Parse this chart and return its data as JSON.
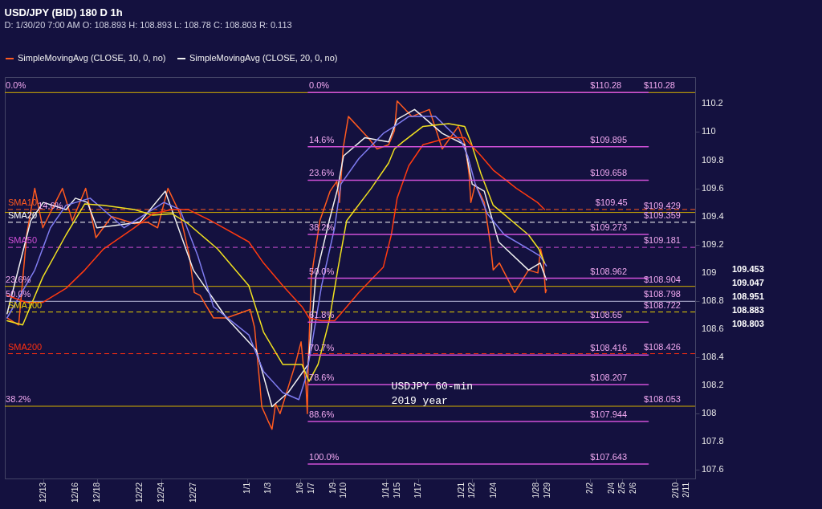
{
  "chart_data": {
    "type": "line",
    "title": "USD/JPY (BID) 180 D 1h",
    "subtitle": "D: 1/30/20 7:00 AM   O: 108.893   H: 108.893   L: 108.78   C: 108.803   R: 0.113",
    "legend": "top",
    "xlim": [
      "2019-12-09T10:00",
      "2020-02-11T19:00"
    ],
    "ylim": [
      107.54,
      110.39
    ],
    "xticks": [
      {
        "value": "2019-12-13",
        "label": "12/13"
      },
      {
        "value": "2019-12-16",
        "label": "12/16"
      },
      {
        "value": "2019-12-18",
        "label": "12/18"
      },
      {
        "value": "2019-12-22",
        "label": "12/22"
      },
      {
        "value": "2019-12-24",
        "label": "12/24"
      },
      {
        "value": "2019-12-27",
        "label": "12/27"
      },
      {
        "value": "2020-01-01",
        "label": "1/1"
      },
      {
        "value": "2020-01-03",
        "label": "1/3"
      },
      {
        "value": "2020-01-06",
        "label": "1/6"
      },
      {
        "value": "2020-01-07",
        "label": "1/7"
      },
      {
        "value": "2020-01-09",
        "label": "1/9"
      },
      {
        "value": "2020-01-10",
        "label": "1/10"
      },
      {
        "value": "2020-01-14",
        "label": "1/14"
      },
      {
        "value": "2020-01-15",
        "label": "1/15"
      },
      {
        "value": "2020-01-17",
        "label": "1/17"
      },
      {
        "value": "2020-01-21",
        "label": "1/21"
      },
      {
        "value": "2020-01-22",
        "label": "1/22"
      },
      {
        "value": "2020-01-24",
        "label": "1/24"
      },
      {
        "value": "2020-01-28",
        "label": "1/28"
      },
      {
        "value": "2020-01-29",
        "label": "1/29"
      },
      {
        "value": "2020-02-02",
        "label": "2/2"
      },
      {
        "value": "2020-02-04",
        "label": "2/4"
      },
      {
        "value": "2020-02-05",
        "label": "2/5"
      },
      {
        "value": "2020-02-06",
        "label": "2/6"
      },
      {
        "value": "2020-02-10",
        "label": "2/10"
      },
      {
        "value": "2020-02-11",
        "label": "2/11"
      }
    ],
    "yticks": [
      107.6,
      107.8,
      108,
      108.2,
      108.4,
      108.6,
      108.8,
      109,
      109.2,
      109.4,
      109.6,
      109.8,
      110,
      110.2
    ],
    "series": [
      {
        "name": "SimpleMovingAvg (CLOSE, 10, 0, no)",
        "color": "#ff5a1f",
        "x": [
          "2019-12-09T15:00",
          "2019-12-10T17:00",
          "2019-12-11T11:00",
          "2019-12-12T05:00",
          "2019-12-12T23:00",
          "2019-12-14T19:00",
          "2019-12-15T17:00",
          "2019-12-16T23:00",
          "2019-12-17T22:00",
          "2019-12-19T09:00",
          "2019-12-21T12:00",
          "2019-12-22T17:00",
          "2019-12-23T16:00",
          "2019-12-24T15:00",
          "2019-12-25T18:00",
          "2019-12-26T15:00",
          "2019-12-27T02:00",
          "2019-12-27T15:00",
          "2019-12-28T21:00",
          "2019-12-30T02:00",
          "2020-01-01T07:00",
          "2020-01-01T17:00",
          "2020-01-02T05:00",
          "2020-01-02T09:00",
          "2020-01-02T23:00",
          "2020-01-03T08:00",
          "2020-01-03T16:00",
          "2020-01-04T02:00",
          "2020-01-05T12:00",
          "2020-01-06T01:00",
          "2020-01-06T06:00",
          "2020-01-06T12:00",
          "2020-01-06T15:00",
          "2020-01-06T17:00",
          "2020-01-07T00:00",
          "2020-01-07T19:00",
          "2020-01-08T18:00",
          "2020-01-09T09:00",
          "2020-01-09T15:00",
          "2020-01-09T23:00",
          "2020-01-10T11:00",
          "2020-01-12T07:00",
          "2020-01-13T03:00",
          "2020-01-14T05:00",
          "2020-01-14T18:00",
          "2020-01-15T00:00",
          "2020-01-16T09:00",
          "2020-01-18T00:00",
          "2020-01-19T05:00",
          "2020-01-20T17:00",
          "2020-01-21T08:00",
          "2020-01-21T17:00",
          "2020-01-21T21:00",
          "2020-01-22T07:00",
          "2020-01-23T03:00",
          "2020-01-23T17:00",
          "2020-01-23T23:00",
          "2020-01-24T13:00",
          "2020-01-25T23:00",
          "2020-01-27T06:00",
          "2020-01-28T03:00",
          "2020-01-28T09:00",
          "2020-01-28T15:00",
          "2020-01-28T20:00",
          "2020-01-28T22:00"
        ],
        "values": [
          108.68,
          108.63,
          109.27,
          109.6,
          109.32,
          109.6,
          109.37,
          109.6,
          109.25,
          109.4,
          109.35,
          109.36,
          109.32,
          109.6,
          109.42,
          109.12,
          108.86,
          108.84,
          108.68,
          108.68,
          108.74,
          108.61,
          108.2,
          108.05,
          107.95,
          107.89,
          108.07,
          108,
          108.35,
          108.51,
          108.35,
          108.2,
          108,
          108.35,
          108.97,
          109.37,
          109.58,
          109.65,
          109.5,
          109.88,
          110.11,
          109.96,
          109.88,
          109.91,
          110.01,
          110.22,
          110.11,
          110.16,
          109.88,
          110.04,
          109.91,
          109.7,
          109.5,
          109.63,
          109.5,
          109.2,
          109.02,
          109.07,
          108.86,
          109.02,
          109,
          109.17,
          109.09,
          108.86,
          108.88
        ]
      },
      {
        "name": "SimpleMovingAvg (CLOSE, 20, 0, no)",
        "color": "#f0f0f0",
        "x": [
          "2019-12-09T15:00",
          "2019-12-11T20:00",
          "2019-12-13",
          "2019-12-15T03:00",
          "2019-12-16",
          "2019-12-17T03:00",
          "2019-12-18",
          "2019-12-22",
          "2019-12-24T09:00",
          "2019-12-27",
          "2019-12-30T02:00",
          "2020-01-01T21:00",
          "2020-01-03T08:00",
          "2020-01-04T20:00",
          "2020-01-06T17:00",
          "2020-01-07T10:00",
          "2020-01-08T16:00",
          "2020-01-09T11:00",
          "2020-01-10",
          "2020-01-12",
          "2020-01-14T05:00",
          "2020-01-15",
          "2020-01-16T15:00",
          "2020-01-19T05:00",
          "2020-01-21T07:00",
          "2020-01-22",
          "2020-01-23T03:00",
          "2020-01-24T11:00",
          "2020-01-27T06:00",
          "2020-01-28T08:00",
          "2020-01-28T22:00"
        ],
        "values": [
          108.71,
          109.37,
          109.5,
          109.45,
          109.53,
          109.5,
          109.32,
          109.36,
          109.58,
          109.02,
          108.68,
          108.45,
          108.05,
          108.15,
          108.35,
          108.97,
          109.37,
          109.6,
          109.83,
          109.96,
          109.93,
          110.09,
          110.16,
          109.99,
          109.91,
          109.63,
          109.58,
          109.22,
          109.02,
          109.07,
          108.95
        ]
      },
      {
        "color": "#7f7cf0",
        "x": [
          "2019-12-09T15:00",
          "2019-12-12T05:00",
          "2019-12-13T16:00",
          "2019-12-15T03:00",
          "2019-12-17T09:00",
          "2019-12-20T13:00",
          "2019-12-23T05:00",
          "2019-12-24T06:00",
          "2019-12-25T18:00",
          "2019-12-27T10:00",
          "2019-12-28T21:00",
          "2020-01-01T04:00",
          "2020-01-02T13:00",
          "2020-01-04T08:00",
          "2020-01-05T20:00",
          "2020-01-06T11:00",
          "2020-01-06T23:00",
          "2020-01-07T23:00",
          "2020-01-09T04:00",
          "2020-01-09T18:00",
          "2020-01-11T10:00",
          "2020-01-13T17:00",
          "2020-01-14T18:00",
          "2020-01-16T02:00",
          "2020-01-18T14:00",
          "2020-01-21",
          "2020-01-21T14:00",
          "2020-01-22T07:00",
          "2020-01-23T10:00",
          "2020-01-25",
          "2020-01-27T06:00",
          "2020-01-28T08:00",
          "2020-01-28T22:00"
        ],
        "values": [
          108.68,
          109.02,
          109.32,
          109.48,
          109.53,
          109.32,
          109.45,
          109.5,
          109.45,
          109.12,
          108.76,
          108.56,
          108.3,
          108.15,
          108.1,
          108.25,
          108.45,
          108.91,
          109.32,
          109.63,
          109.81,
          109.99,
          110.04,
          110.11,
          110.11,
          109.93,
          109.83,
          109.63,
          109.42,
          109.27,
          109.17,
          109.12,
          109.05
        ]
      },
      {
        "color": "#f0e020",
        "x": [
          "2019-12-09T15:00",
          "2019-12-11T02:00",
          "2019-12-12T23:00",
          "2019-12-15T03:00",
          "2019-12-16T21:00",
          "2019-12-18T15:00",
          "2019-12-21T12:00",
          "2019-12-23T05:00",
          "2019-12-25",
          "2019-12-26T12:00",
          "2019-12-29T06:00",
          "2020-01-01T04:00",
          "2020-01-02T13:00",
          "2020-01-04T08:00",
          "2020-01-06T03:00",
          "2020-01-06T19:00",
          "2020-01-07T15:00",
          "2020-01-08T16:00",
          "2020-01-09T11:00",
          "2020-01-10T07:00",
          "2020-01-12T14:00",
          "2020-01-14T05:00",
          "2020-01-14T18:00",
          "2020-01-15T13:00",
          "2020-01-17T10:00",
          "2020-01-19T19:00",
          "2020-01-21T07:00",
          "2020-01-21T21:00",
          "2020-01-22T20:00",
          "2020-01-23T23:00",
          "2020-01-27T06:00",
          "2020-01-28T05:00",
          "2020-01-28T18:00"
        ],
        "values": [
          108.66,
          108.63,
          108.97,
          109.27,
          109.49,
          109.48,
          109.45,
          109.41,
          109.42,
          109.35,
          109.17,
          108.91,
          108.58,
          108.35,
          108.35,
          108.23,
          108.35,
          108.66,
          109.02,
          109.37,
          109.6,
          109.78,
          109.88,
          109.93,
          110.04,
          110.06,
          110.04,
          109.93,
          109.7,
          109.48,
          109.27,
          109.17,
          109.07
        ]
      },
      {
        "color": "#ff3a10",
        "x": [
          "2019-12-09T15:00",
          "2019-12-11T11:00",
          "2019-12-12T23:00",
          "2019-12-15T03:00",
          "2019-12-16T21:00",
          "2019-12-18T15:00",
          "2019-12-21T12:00",
          "2019-12-23T05:00",
          "2019-12-25",
          "2019-12-26T12:00",
          "2019-12-28T15:00",
          "2020-01-01T04:00",
          "2020-01-02T13:00",
          "2020-01-04T08:00",
          "2020-01-06T03:00",
          "2020-01-06T19:00",
          "2020-01-07T23:00",
          "2020-01-09T04:00",
          "2020-01-09T18:00",
          "2020-01-11T10:00",
          "2020-01-13T17:00",
          "2020-01-14T11:00",
          "2020-01-15",
          "2020-01-16T02:00",
          "2020-01-17T10:00",
          "2020-01-19T19:00",
          "2020-01-21T07:00",
          "2020-01-21T21:00",
          "2020-01-22T20:00",
          "2020-01-23T23:00",
          "2020-01-26T03:00",
          "2020-01-28T02:00",
          "2020-01-28T18:00"
        ],
        "values": [
          108.84,
          108.79,
          108.79,
          108.89,
          109.02,
          109.17,
          109.32,
          109.42,
          109.45,
          109.45,
          109.37,
          109.22,
          109.07,
          108.91,
          108.76,
          108.68,
          108.66,
          108.66,
          108.71,
          108.86,
          109.04,
          109.27,
          109.53,
          109.76,
          109.91,
          109.96,
          109.96,
          109.91,
          109.83,
          109.73,
          109.6,
          109.5,
          109.45
        ]
      },
      {
        "color": "#d050d8",
        "x": [
          "2020-01-06T17:00",
          "2020-02-07T10:00"
        ],
        "values": [
          110.28,
          110.28
        ]
      },
      {
        "color": "#d050d8",
        "x": [
          "2020-01-06T17:00",
          "2020-02-07T10:00"
        ],
        "values": [
          109.895,
          109.895
        ]
      },
      {
        "color": "#d050d8",
        "x": [
          "2020-01-06T17:00",
          "2020-02-07T10:00"
        ],
        "values": [
          109.658,
          109.658
        ]
      },
      {
        "color": "#d050d8",
        "x": [
          "2020-01-06T17:00",
          "2020-02-07T10:00"
        ],
        "values": [
          109.273,
          109.273
        ]
      },
      {
        "color": "#d050d8",
        "x": [
          "2020-01-06T17:00",
          "2020-02-07T10:00"
        ],
        "values": [
          108.962,
          108.962
        ]
      },
      {
        "color": "#d050d8",
        "x": [
          "2020-01-06T17:00",
          "2020-02-07T10:00"
        ],
        "values": [
          108.65,
          108.65
        ]
      },
      {
        "color": "#d050d8",
        "x": [
          "2020-01-06T17:00",
          "2020-02-07T10:00"
        ],
        "values": [
          108.416,
          108.416
        ]
      },
      {
        "color": "#d050d8",
        "x": [
          "2020-01-06T17:00",
          "2020-02-07T10:00"
        ],
        "values": [
          108.207,
          108.207
        ]
      },
      {
        "color": "#d050d8",
        "x": [
          "2020-01-06T17:00",
          "2020-02-07T10:00"
        ],
        "values": [
          107.944,
          107.944
        ]
      },
      {
        "color": "#d050d8",
        "x": [
          "2020-01-06T17:00",
          "2020-02-07T10:00"
        ],
        "values": [
          107.643,
          107.643
        ]
      }
    ],
    "ref_lines": [
      {
        "axis": "y",
        "value": 110.28,
        "color": "#d4b000"
      },
      {
        "axis": "y",
        "value": 109.429,
        "color": "#d4b000"
      },
      {
        "axis": "y",
        "value": 108.904,
        "color": "#d4b000"
      },
      {
        "axis": "y",
        "value": 108.798,
        "color": "#b8b8d8"
      },
      {
        "axis": "y",
        "value": 108.053,
        "color": "#d4b000"
      },
      {
        "axis": "y",
        "value": 109.45,
        "label": "SMA10",
        "color": "#ff5a1f",
        "line_style": "dashed"
      },
      {
        "axis": "y",
        "value": 109.359,
        "label": "SMA20",
        "color": "#ffffff",
        "line_style": "dashed"
      },
      {
        "axis": "y",
        "value": 109.181,
        "label": "SMA50",
        "color": "#d050d8",
        "line_style": "dashed"
      },
      {
        "axis": "y",
        "value": 108.722,
        "label": "SMA100",
        "color": "#e8d000",
        "line_style": "dashed"
      },
      {
        "axis": "y",
        "value": 108.426,
        "label": "SMA200",
        "color": "#ff3010",
        "line_style": "dashed"
      }
    ],
    "annotations": [
      {
        "text": "0.0%",
        "x": "2019-12-09T12:00",
        "y": 110.28
      },
      {
        "text": "14.6%",
        "x": "2019-12-12T12:00",
        "y": 109.429
      },
      {
        "text": "23.6%",
        "x": "2019-12-09T12:00",
        "y": 108.904
      },
      {
        "text": "50.0%",
        "x": "2019-12-09T12:00",
        "y": 108.798
      },
      {
        "text": "38.2%",
        "x": "2019-12-09T12:00",
        "y": 108.053
      },
      {
        "text": "$110.28",
        "x": "2020-02-07T00:00",
        "y": 110.28
      },
      {
        "text": "$109.429",
        "x": "2020-02-07T00:00",
        "y": 109.429
      },
      {
        "text": "$109.45",
        "x": "2020-02-02T12:00",
        "y": 109.45
      },
      {
        "text": "$109.359",
        "x": "2020-02-07T00:00",
        "y": 109.359
      },
      {
        "text": "$109.181",
        "x": "2020-02-07T00:00",
        "y": 109.181
      },
      {
        "text": "$108.904",
        "x": "2020-02-07T00:00",
        "y": 108.904
      },
      {
        "text": "$108.798",
        "x": "2020-02-07T00:00",
        "y": 108.798
      },
      {
        "text": "$108.722",
        "x": "2020-02-07T00:00",
        "y": 108.722
      },
      {
        "text": "$108.426",
        "x": "2020-02-07T00:00",
        "y": 108.426
      },
      {
        "text": "$108.053",
        "x": "2020-02-07T00:00",
        "y": 108.053
      },
      {
        "text": "0.0%",
        "x": "2020-01-06T19:00",
        "y": 110.28
      },
      {
        "text": "14.6%",
        "x": "2020-01-06T19:00",
        "y": 109.895
      },
      {
        "text": "23.6%",
        "x": "2020-01-06T19:00",
        "y": 109.658
      },
      {
        "text": "38.2%",
        "x": "2020-01-06T19:00",
        "y": 109.273
      },
      {
        "text": "50.0%",
        "x": "2020-01-06T19:00",
        "y": 108.962
      },
      {
        "text": "61.8%",
        "x": "2020-01-06T19:00",
        "y": 108.65
      },
      {
        "text": "70.7%",
        "x": "2020-01-06T19:00",
        "y": 108.416
      },
      {
        "text": "78.6%",
        "x": "2020-01-06T19:00",
        "y": 108.207
      },
      {
        "text": "88.6%",
        "x": "2020-01-06T19:00",
        "y": 107.944
      },
      {
        "text": "100.0%",
        "x": "2020-01-06T19:00",
        "y": 107.643
      },
      {
        "text": "$110.28",
        "x": "2020-02-02T00:00",
        "y": 110.28
      },
      {
        "text": "$109.895",
        "x": "2020-02-02T00:00",
        "y": 109.895
      },
      {
        "text": "$109.658",
        "x": "2020-02-02T00:00",
        "y": 109.658
      },
      {
        "text": "$109.273",
        "x": "2020-02-02T00:00",
        "y": 109.273
      },
      {
        "text": "$108.962",
        "x": "2020-02-02T00:00",
        "y": 108.962
      },
      {
        "text": "$108.65",
        "x": "2020-02-02T00:00",
        "y": 108.65
      },
      {
        "text": "$108.416",
        "x": "2020-02-02T00:00",
        "y": 108.416
      },
      {
        "text": "$108.207",
        "x": "2020-02-02T00:00",
        "y": 108.207
      },
      {
        "text": "$107.944",
        "x": "2020-02-02T00:00",
        "y": 107.944
      },
      {
        "text": "$107.643",
        "x": "2020-02-02T00:00",
        "y": 107.643
      },
      "109.453",
      "109.047",
      "108.951",
      "108.883",
      "108.803",
      "USDJPY 60-min",
      "2019 year"
    ]
  }
}
